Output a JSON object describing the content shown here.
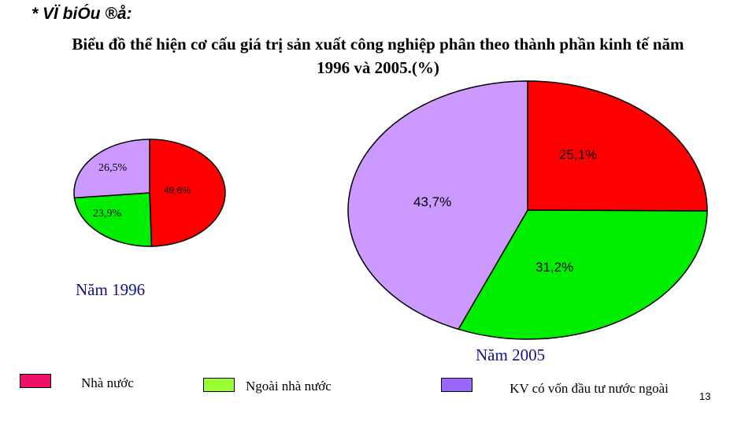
{
  "slide": {
    "heading": "* VÏ biÓu ®å:",
    "title_line1": "Biểu đồ thể hiện cơ cấu giá trị sản xuất công nghiệp phân theo thành phần kinh tế năm",
    "title_line2": "1996 và 2005.(%)",
    "page_number": "13"
  },
  "legend": [
    {
      "label": "Nhà nước",
      "color": "#ee1166"
    },
    {
      "label": "Ngoài nhà nước",
      "color": "#99ff33"
    },
    {
      "label": "KV có vốn đầu tư nước ngoài",
      "color": "#9966ff"
    }
  ],
  "slice_colors": [
    "#ff0000",
    "#00ee00",
    "#cc99ff"
  ],
  "chart_data": [
    {
      "type": "pie",
      "title": "Năm 1996",
      "categories": [
        "Nhà nước",
        "Ngoài nhà nước",
        "KV có vốn đầu tư nước ngoài"
      ],
      "values": [
        49.6,
        23.9,
        26.5
      ],
      "labels": [
        "49,6%",
        "23,9%",
        "26,5%"
      ]
    },
    {
      "type": "pie",
      "title": "Năm 2005",
      "categories": [
        "Nhà nước",
        "Ngoài nhà nước",
        "KV có vốn đầu tư nước ngoài"
      ],
      "values": [
        25.1,
        31.2,
        43.7
      ],
      "labels": [
        "25,1%",
        "31,2%",
        "43,7%"
      ]
    }
  ]
}
